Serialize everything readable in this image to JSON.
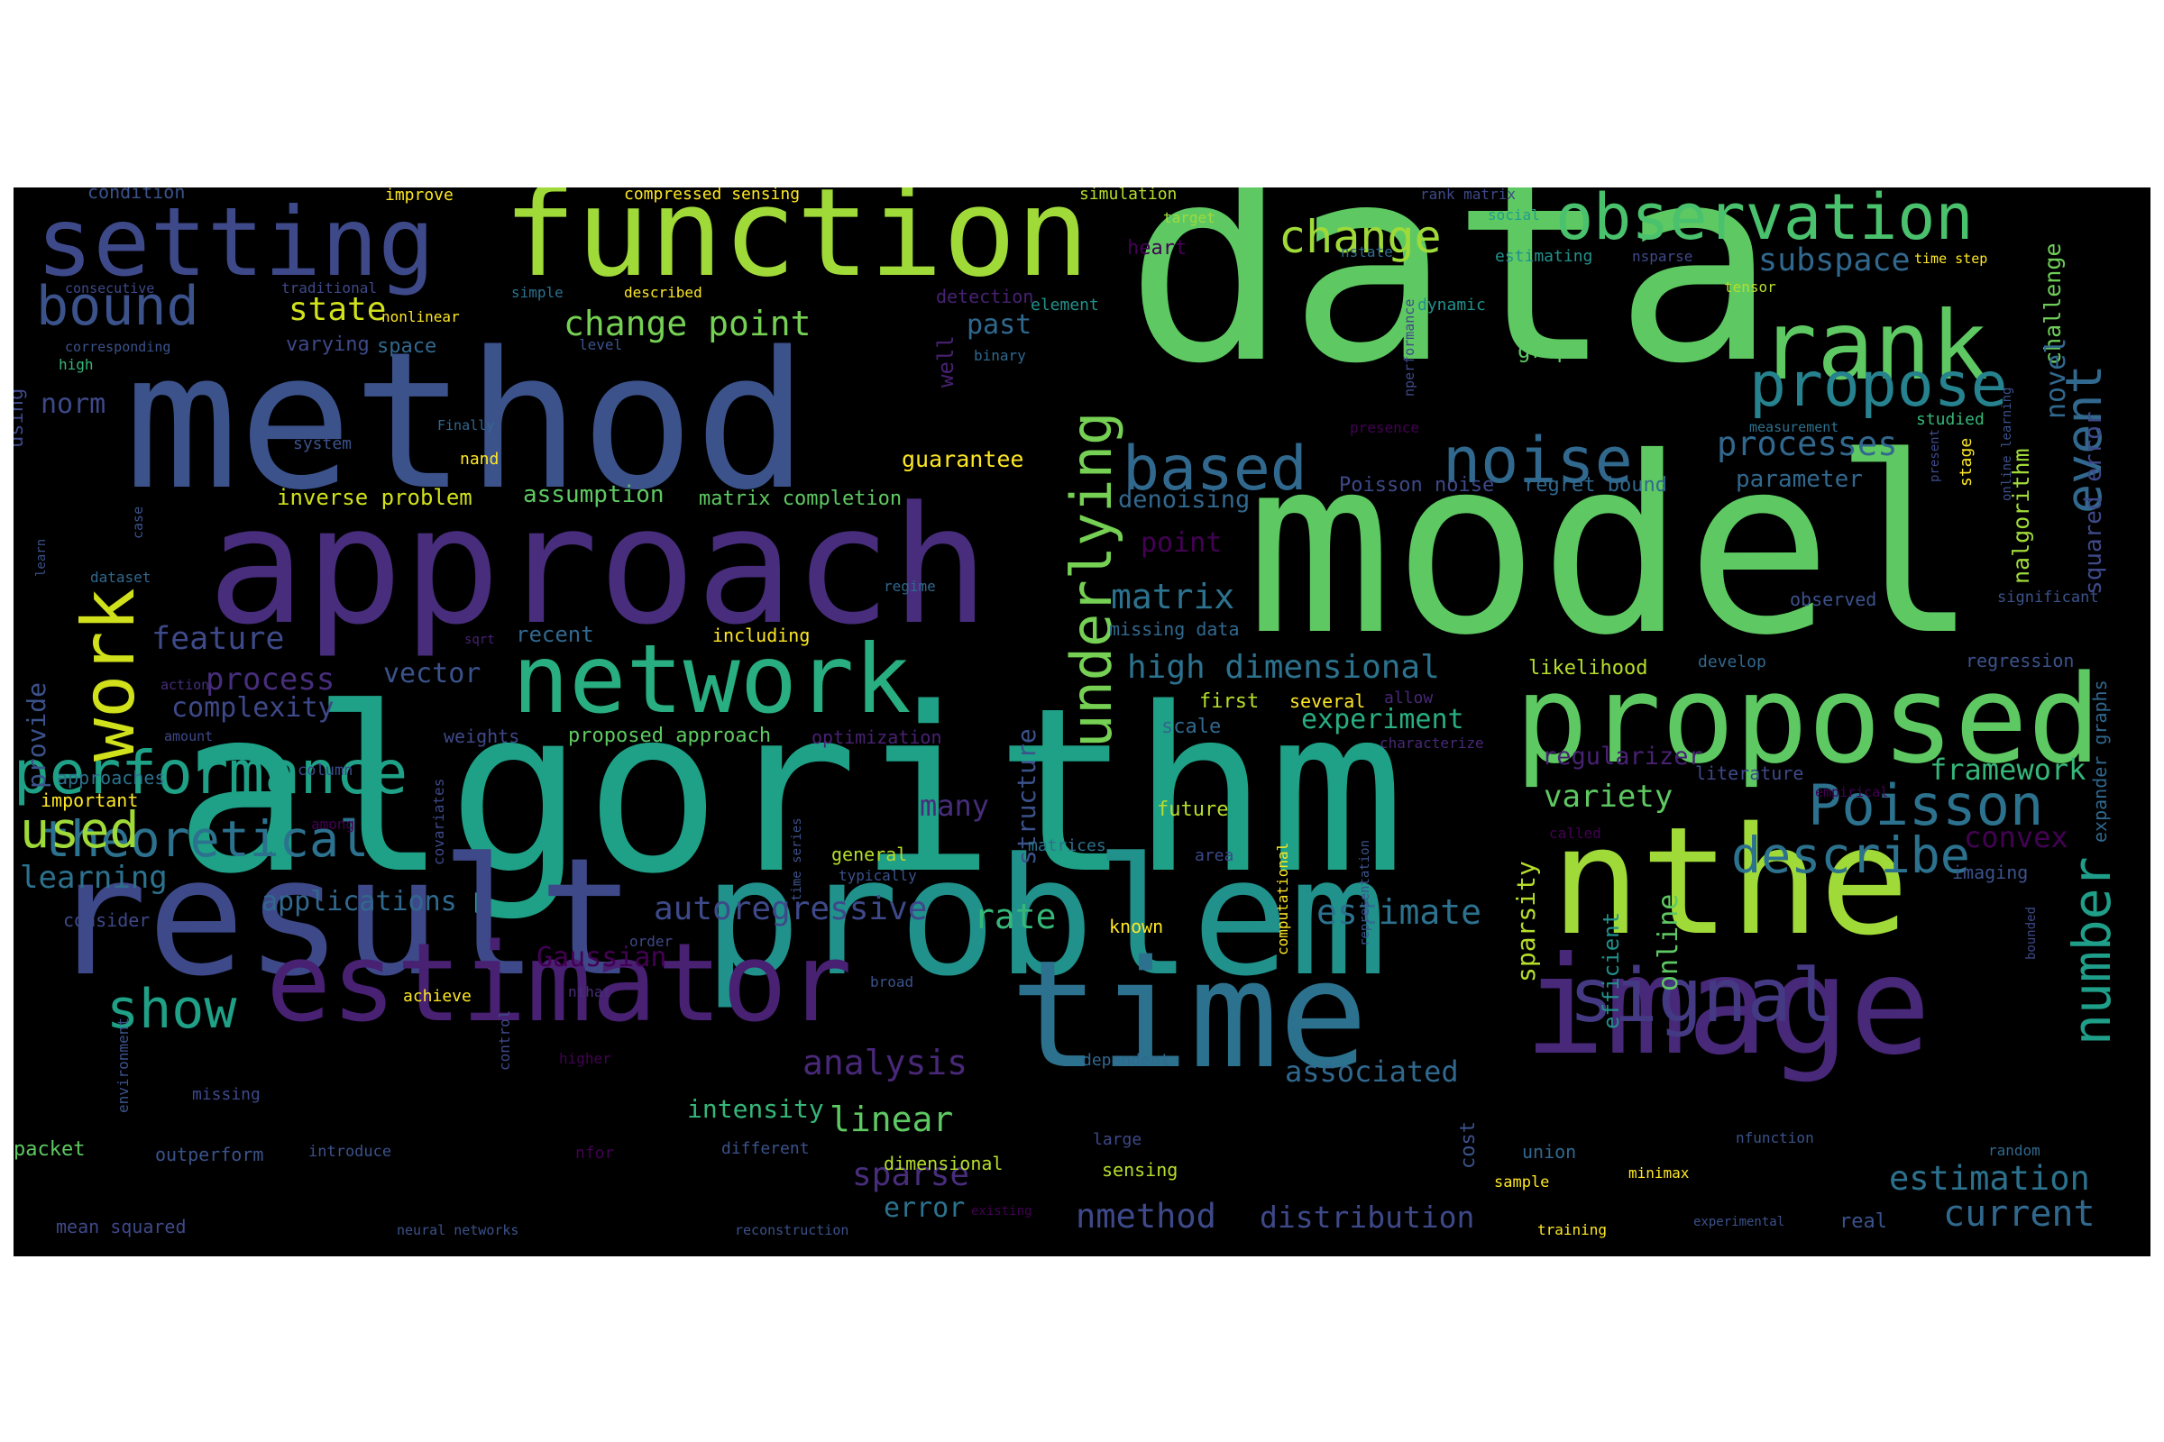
{
  "words": [
    {
      "text": "data",
      "color": "#5ec962"
    },
    {
      "text": "model",
      "color": "#5ec962"
    },
    {
      "text": "algorithm",
      "color": "#1fa187"
    },
    {
      "text": "method",
      "color": "#3b528b"
    },
    {
      "text": "approach",
      "color": "#472d7b"
    },
    {
      "text": "result",
      "color": "#3e4989"
    },
    {
      "text": "problem",
      "color": "#21918c"
    },
    {
      "text": "function",
      "color": "#a0da39"
    },
    {
      "text": "time",
      "color": "#2c728e"
    },
    {
      "text": "nthe",
      "color": "#a0da39"
    },
    {
      "text": "image",
      "color": "#482878"
    },
    {
      "text": "proposed",
      "color": "#5ec962"
    },
    {
      "text": "network",
      "color": "#28ae80"
    },
    {
      "text": "estimator",
      "color": "#482173"
    },
    {
      "text": "setting",
      "color": "#3e4989"
    },
    {
      "text": "rank",
      "color": "#5ec962"
    },
    {
      "text": "observation",
      "color": "#4ac16d"
    },
    {
      "text": "performance",
      "color": "#1fa187"
    },
    {
      "text": "signal",
      "color": "#443983"
    },
    {
      "text": "propose",
      "color": "#26828e"
    },
    {
      "text": "noise",
      "color": "#31688e"
    },
    {
      "text": "based",
      "color": "#31688e"
    },
    {
      "text": "work",
      "color": "#d0e11c"
    },
    {
      "text": "underlying",
      "color": "#75d054"
    },
    {
      "text": "show",
      "color": "#1fa187"
    },
    {
      "text": "theoretical",
      "color": "#2c728e"
    },
    {
      "text": "describe",
      "color": "#2c728e"
    },
    {
      "text": "Poisson",
      "color": "#2c728e"
    },
    {
      "text": "bound",
      "color": "#3b528b"
    },
    {
      "text": "used",
      "color": "#a0da39"
    },
    {
      "text": "change",
      "color": "#a0da39"
    },
    {
      "text": "number",
      "color": "#1f9e89"
    },
    {
      "text": "event",
      "color": "#31688e"
    },
    {
      "text": "change point",
      "color": "#75d054"
    },
    {
      "text": "high dimensional",
      "color": "#2c728e"
    },
    {
      "text": "autoregressive",
      "color": "#3e4989"
    },
    {
      "text": "matrix",
      "color": "#2c728e"
    },
    {
      "text": "processes",
      "color": "#31688e"
    },
    {
      "text": "estimate",
      "color": "#2c728e"
    },
    {
      "text": "rate",
      "color": "#35b779"
    },
    {
      "text": "analysis",
      "color": "#482878"
    },
    {
      "text": "feature",
      "color": "#3e4989"
    },
    {
      "text": "process",
      "color": "#472d7b"
    },
    {
      "text": "applications",
      "color": "#31688e"
    },
    {
      "text": "learning",
      "color": "#2c728e"
    },
    {
      "text": "linear",
      "color": "#5ec962"
    },
    {
      "text": "associated",
      "color": "#31688e"
    },
    {
      "text": "distribution",
      "color": "#3e4989"
    },
    {
      "text": "nmethod",
      "color": "#3e4989"
    },
    {
      "text": "current",
      "color": "#31688e"
    },
    {
      "text": "estimation",
      "color": "#2c728e"
    },
    {
      "text": "framework",
      "color": "#35b779"
    },
    {
      "text": "variety",
      "color": "#5ec962"
    },
    {
      "text": "subspace",
      "color": "#31688e"
    },
    {
      "text": "state",
      "color": "#d0e11c"
    },
    {
      "text": "past",
      "color": "#31688e"
    },
    {
      "text": "online",
      "color": "#5ec962"
    },
    {
      "text": "sparse",
      "color": "#472d7b"
    },
    {
      "text": "error",
      "color": "#2c728e"
    },
    {
      "text": "structure",
      "color": "#3b528b"
    },
    {
      "text": "many",
      "color": "#472d7b"
    },
    {
      "text": "sparsity",
      "color": "#b5de2b"
    },
    {
      "text": "experiment",
      "color": "#28ae80"
    },
    {
      "text": "vector",
      "color": "#3b528b"
    },
    {
      "text": "complexity",
      "color": "#3e4989"
    },
    {
      "text": "Gaussian",
      "color": "#440154"
    },
    {
      "text": "intensity",
      "color": "#35b779"
    },
    {
      "text": "convex",
      "color": "#440154"
    },
    {
      "text": "nalgorithm",
      "color": "#a0da39"
    },
    {
      "text": "squared error",
      "color": "#3e4989"
    },
    {
      "text": "challenge",
      "color": "#6ece58"
    },
    {
      "text": "novel",
      "color": "#31688e"
    },
    {
      "text": "parameter",
      "color": "#31688e"
    },
    {
      "text": "graph",
      "color": "#5ec962"
    },
    {
      "text": "norm",
      "color": "#3e4989"
    },
    {
      "text": "provide",
      "color": "#3b528b"
    },
    {
      "text": "regularizer",
      "color": "#482173"
    },
    {
      "text": "denoising",
      "color": "#31688e"
    },
    {
      "text": "point",
      "color": "#440154"
    },
    {
      "text": "inverse problem",
      "color": "#d0e11c"
    },
    {
      "text": "assumption",
      "color": "#5ec962"
    },
    {
      "text": "matrix completion",
      "color": "#5ec962"
    },
    {
      "text": "guarantee",
      "color": "#fde725"
    },
    {
      "text": "Poisson noise",
      "color": "#3e4989"
    },
    {
      "text": "regret bound",
      "color": "#31688e"
    },
    {
      "text": "efficient",
      "color": "#21918c"
    },
    {
      "text": "condition",
      "color": "#3b528b"
    },
    {
      "text": "improve",
      "color": "#fde725"
    },
    {
      "text": "compressed sensing",
      "color": "#fde725"
    },
    {
      "text": "simulation",
      "color": "#b5de2b"
    },
    {
      "text": "rank matrix",
      "color": "#3e4989"
    },
    {
      "text": "social",
      "color": "#1f9e89"
    },
    {
      "text": "target",
      "color": "#a0da39"
    },
    {
      "text": "heart",
      "color": "#440154"
    },
    {
      "text": "nstate",
      "color": "#31688e"
    },
    {
      "text": "estimating",
      "color": "#21918c"
    },
    {
      "text": "nsparse",
      "color": "#3e4989"
    },
    {
      "text": "time step",
      "color": "#fde725"
    },
    {
      "text": "tensor",
      "color": "#b5de2b"
    },
    {
      "text": "consecutive",
      "color": "#3e4989"
    },
    {
      "text": "traditional",
      "color": "#3e4989"
    },
    {
      "text": "simple",
      "color": "#2c728e"
    },
    {
      "text": "described",
      "color": "#fde725"
    },
    {
      "text": "detection",
      "color": "#482173"
    },
    {
      "text": "element",
      "color": "#21918c"
    },
    {
      "text": "dynamic",
      "color": "#21918c"
    },
    {
      "text": "varying",
      "color": "#3e4989"
    },
    {
      "text": "space",
      "color": "#31688e"
    },
    {
      "text": "nonlinear",
      "color": "#fde725"
    },
    {
      "text": "corresponding",
      "color": "#3b528b"
    },
    {
      "text": "high",
      "color": "#35b779"
    },
    {
      "text": "level",
      "color": "#3b528b"
    },
    {
      "text": "binary",
      "color": "#31688e"
    },
    {
      "text": "well",
      "color": "#482173"
    },
    {
      "text": "nperformance",
      "color": "#3e4989"
    },
    {
      "text": "presence",
      "color": "#440154"
    },
    {
      "text": "measurement",
      "color": "#2c728e"
    },
    {
      "text": "studied",
      "color": "#35b779"
    },
    {
      "text": "system",
      "color": "#3b528b"
    },
    {
      "text": "Finally",
      "color": "#31688e"
    },
    {
      "text": "nand",
      "color": "#fde725"
    },
    {
      "text": "using",
      "color": "#3e4989"
    },
    {
      "text": "dynamic programming",
      "color": "#482878"
    },
    {
      "text": "case",
      "color": "#3b528b"
    },
    {
      "text": "dataset",
      "color": "#31688e"
    },
    {
      "text": "learn",
      "color": "#3b528b"
    },
    {
      "text": "regime",
      "color": "#31688e"
    },
    {
      "text": "recent",
      "color": "#31688e"
    },
    {
      "text": "sqrt",
      "color": "#482173"
    },
    {
      "text": "missing data",
      "color": "#31688e"
    },
    {
      "text": "including",
      "color": "#fde725"
    },
    {
      "text": "observed",
      "color": "#3b528b"
    },
    {
      "text": "significant",
      "color": "#3b528b"
    },
    {
      "text": "present",
      "color": "#3e4989"
    },
    {
      "text": "stage",
      "color": "#fde725"
    },
    {
      "text": "online learning",
      "color": "#3b528b"
    },
    {
      "text": "likelihood",
      "color": "#b5de2b"
    },
    {
      "text": "develop",
      "color": "#31688e"
    },
    {
      "text": "regression",
      "color": "#3b528b"
    },
    {
      "text": "action",
      "color": "#472d7b"
    },
    {
      "text": "amount",
      "color": "#3e4989"
    },
    {
      "text": "weights",
      "color": "#3e4989"
    },
    {
      "text": "proposed approach",
      "color": "#5ec962"
    },
    {
      "text": "optimization",
      "color": "#482173"
    },
    {
      "text": "first",
      "color": "#b5de2b"
    },
    {
      "text": "allow",
      "color": "#482878"
    },
    {
      "text": "several",
      "color": "#fde725"
    },
    {
      "text": "scale",
      "color": "#31688e"
    },
    {
      "text": "characterize",
      "color": "#482878"
    },
    {
      "text": "column",
      "color": "#3e4989"
    },
    {
      "text": "approaches",
      "color": "#2c728e"
    },
    {
      "text": "important",
      "color": "#fde725"
    },
    {
      "text": "covariates",
      "color": "#3e4989"
    },
    {
      "text": "among",
      "color": "#440154"
    },
    {
      "text": "literature",
      "color": "#3e4989"
    },
    {
      "text": "empirical",
      "color": "#440154"
    },
    {
      "text": "expander graphs",
      "color": "#31688e"
    },
    {
      "text": "future",
      "color": "#b5de2b"
    },
    {
      "text": "called",
      "color": "#440154"
    },
    {
      "text": "matrices",
      "color": "#2c728e"
    },
    {
      "text": "area",
      "color": "#3e4989"
    },
    {
      "text": "computational",
      "color": "#fde725"
    },
    {
      "text": "representation",
      "color": "#3b528b"
    },
    {
      "text": "time series",
      "color": "#3b528b"
    },
    {
      "text": "general",
      "color": "#b5de2b"
    },
    {
      "text": "typically",
      "color": "#3b528b"
    },
    {
      "text": "imaging",
      "color": "#3b528b"
    },
    {
      "text": "consider",
      "color": "#3e4989"
    },
    {
      "text": "order",
      "color": "#3e4989"
    },
    {
      "text": "known",
      "color": "#fde725"
    },
    {
      "text": "bounded",
      "color": "#3e4989"
    },
    {
      "text": "achieve",
      "color": "#fde725"
    },
    {
      "text": "nthat",
      "color": "#472d7b"
    },
    {
      "text": "broad",
      "color": "#3b528b"
    },
    {
      "text": "higher",
      "color": "#440154"
    },
    {
      "text": "dependent",
      "color": "#31688e"
    },
    {
      "text": "environment",
      "color": "#3b528b"
    },
    {
      "text": "control",
      "color": "#3e4989"
    },
    {
      "text": "missing",
      "color": "#3e4989"
    },
    {
      "text": "packet",
      "color": "#5ec962"
    },
    {
      "text": "outperform",
      "color": "#3b528b"
    },
    {
      "text": "introduce",
      "color": "#3b528b"
    },
    {
      "text": "nfor",
      "color": "#440154"
    },
    {
      "text": "different",
      "color": "#3b528b"
    },
    {
      "text": "dimensional",
      "color": "#b5de2b"
    },
    {
      "text": "large",
      "color": "#3e4989"
    },
    {
      "text": "sensing",
      "color": "#b5de2b"
    },
    {
      "text": "cost",
      "color": "#3b528b"
    },
    {
      "text": "union",
      "color": "#31688e"
    },
    {
      "text": "sample",
      "color": "#fde725"
    },
    {
      "text": "minimax",
      "color": "#fde725"
    },
    {
      "text": "nfunction",
      "color": "#3b528b"
    },
    {
      "text": "random",
      "color": "#31688e"
    },
    {
      "text": "real",
      "color": "#3b528b"
    },
    {
      "text": "training",
      "color": "#fde725"
    },
    {
      "text": "experimental",
      "color": "#3b528b"
    },
    {
      "text": "mean squared",
      "color": "#3e4989"
    },
    {
      "text": "neural networks",
      "color": "#3b528b"
    },
    {
      "text": "reconstruction",
      "color": "#3b528b"
    },
    {
      "text": "existing",
      "color": "#440154"
    }
  ]
}
